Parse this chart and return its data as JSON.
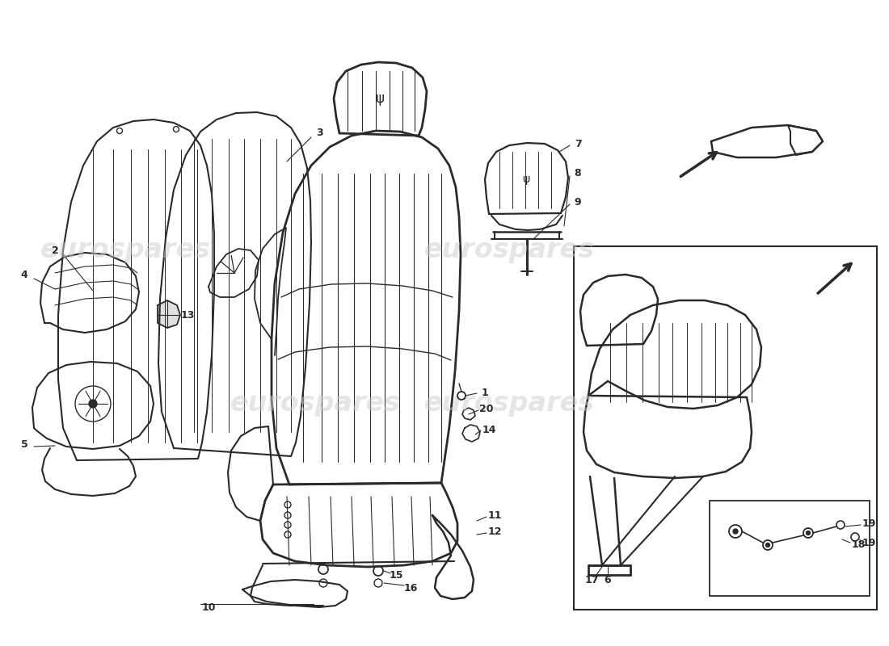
{
  "bg_color": "#ffffff",
  "line_color": "#2a2a2a",
  "light_color": "#888888",
  "watermark_color": "#cccccc",
  "watermark_text": "eurospares",
  "figsize": [
    11.0,
    8.0
  ],
  "dpi": 100
}
